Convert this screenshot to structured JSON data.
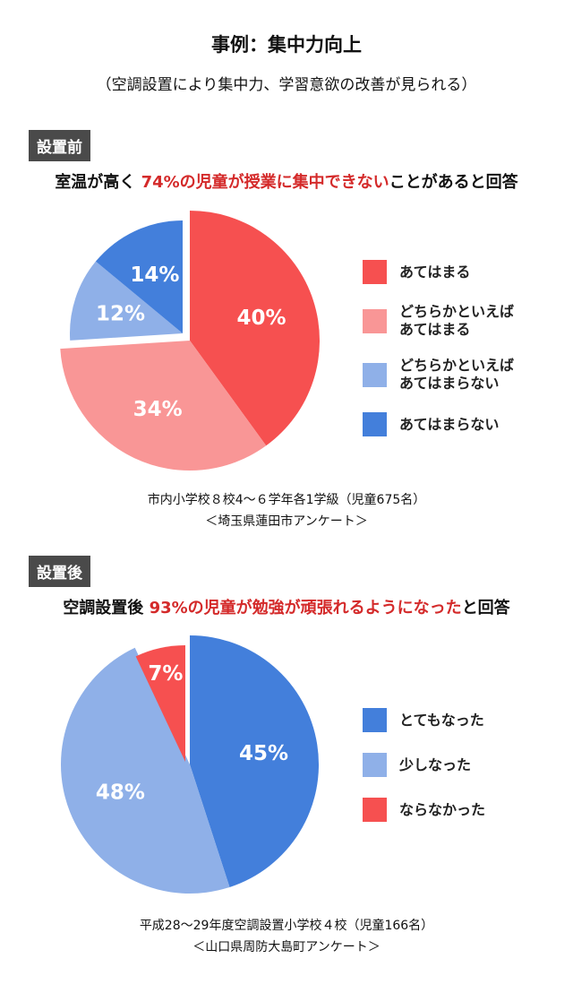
{
  "header": {
    "title": "事例：集中力向上",
    "subtitle": "（空調設置により集中力、学習意欲の改善が見られる）"
  },
  "before": {
    "badge": "設置前",
    "headline_pre": "室温が高く ",
    "headline_highlight": "74%の児童が授業に集中できない",
    "headline_post": "ことがあると回答",
    "footnote_line1": "市内小学校８校4〜６学年各1学級（児童675名）",
    "footnote_line2": "＜埼玉県蓮田市アンケート＞"
  },
  "after": {
    "badge": "設置後",
    "headline_pre": "空調設置後 ",
    "headline_highlight": "93%の児童が勉強が頑張れるようになった",
    "headline_post": "と回答",
    "footnote_line1": "平成28〜29年度空調設置小学校４校（児童166名）",
    "footnote_line2": "＜山口県周防大島町アンケート＞"
  },
  "chart_data": [
    {
      "type": "pie",
      "start": "12 o'clock, clockwise",
      "slices": [
        {
          "name": "あてはまる",
          "value": 40,
          "label": "40%",
          "color": "#f65050"
        },
        {
          "name": "どちらかといえばあてはまる",
          "value": 34,
          "label": "34%",
          "color": "#f99696"
        },
        {
          "name": "どちらかといえばあてはまらない",
          "value": 12,
          "label": "12%",
          "color": "#8fb0e8",
          "exploded": true
        },
        {
          "name": "あてはまらない",
          "value": 14,
          "label": "14%",
          "color": "#437fdb",
          "exploded": true
        }
      ],
      "legend": {
        "placement": "right",
        "items": [
          {
            "line1": "あてはまる",
            "line2": ""
          },
          {
            "line1": "どちらかといえば",
            "line2": "あてはまる"
          },
          {
            "line1": "どちらかといえば",
            "line2": "あてはまらない"
          },
          {
            "line1": "あてはまらない",
            "line2": ""
          }
        ]
      }
    },
    {
      "type": "pie",
      "start": "12 o'clock, clockwise",
      "slices": [
        {
          "name": "とてもなった",
          "value": 45,
          "label": "45%",
          "color": "#437fdb"
        },
        {
          "name": "少しなった",
          "value": 48,
          "label": "48%",
          "color": "#8fb0e8"
        },
        {
          "name": "ならなかった",
          "value": 7,
          "label": "7%",
          "color": "#f65050",
          "exploded": true
        }
      ],
      "legend": {
        "placement": "right",
        "items": [
          {
            "line1": "とてもなった",
            "line2": ""
          },
          {
            "line1": "少しなった",
            "line2": ""
          },
          {
            "line1": "ならなかった",
            "line2": ""
          }
        ]
      }
    }
  ]
}
